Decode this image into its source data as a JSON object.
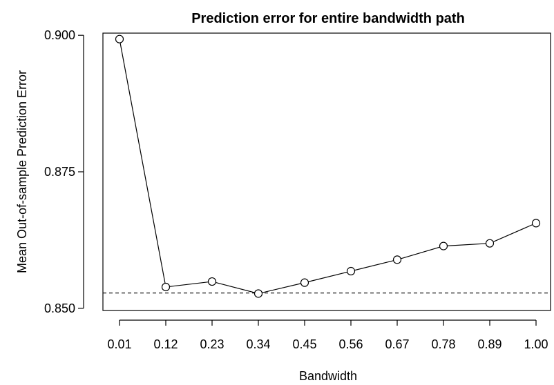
{
  "chart_data": {
    "type": "line",
    "title": "Prediction error for entire bandwidth path",
    "xlabel": "Bandwidth",
    "ylabel": "Mean Out-of-sample Prediction Error",
    "categories": [
      "0.01",
      "0.12",
      "0.23",
      "0.34",
      "0.45",
      "0.56",
      "0.67",
      "0.78",
      "0.89",
      "1.00"
    ],
    "series": [
      {
        "values": [
          0.8993,
          0.8539,
          0.8549,
          0.8527,
          0.8547,
          0.8568,
          0.8589,
          0.8614,
          0.8619,
          0.8656
        ]
      }
    ],
    "yticks": [
      "0.850",
      "0.875",
      "0.900"
    ],
    "ylim": [
      0.8496,
      0.9004
    ],
    "reference_line": {
      "y": 0.8528,
      "style": "dashed"
    },
    "marker": "open-circle",
    "grid": false,
    "legend": "none"
  }
}
